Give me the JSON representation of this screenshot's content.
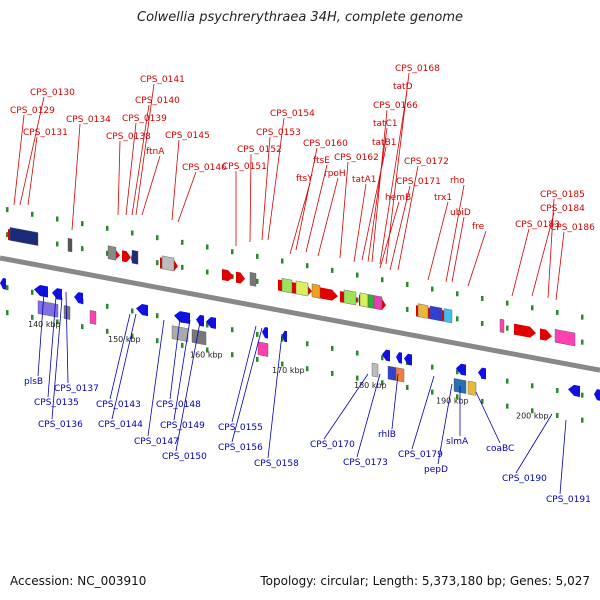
{
  "title": "Colwellia psychrerythraea 34H, complete genome",
  "footer": {
    "accession": "Accession: NC_003910",
    "summary": "Topology: circular; Length: 5,373,180 bp; Genes: 5,027"
  },
  "colors": {
    "forward": "#e00000",
    "reverse": "#1010e0",
    "label_forward": "#d40000",
    "label_reverse": "#0000b4",
    "backbone": "#888888",
    "tick": "#2a8a2a"
  },
  "scale_labels": [
    "140 kbp",
    "150 kbp",
    "160 kbp",
    "170 kbp",
    "180 kbp",
    "190 kbp",
    "200 kbp"
  ],
  "forward_labels": [
    "CPS_0130",
    "CPS_0129",
    "CPS_0131",
    "CPS_0134",
    "CPS_0141",
    "CPS_0140",
    "CPS_0139",
    "CPS_0138",
    "ftnA",
    "CPS_0145",
    "CPS_0146",
    "CPS_0154",
    "CPS_0153",
    "CPS_0152",
    "CPS_0151",
    "CPS_0160",
    "ftsE",
    "ftsY",
    "rpoH",
    "CPS_0162",
    "tatA1",
    "tatB1",
    "tatC1",
    "CPS_0166",
    "tatD",
    "CPS_0168",
    "hemB",
    "CPS_0172",
    "CPS_0171",
    "trx1",
    "rho",
    "ubiD",
    "fre",
    "CPS_0183",
    "CPS_0184",
    "CPS_0185",
    "CPS_0186"
  ],
  "reverse_labels": [
    "plsB",
    "CPS_0137",
    "CPS_0135",
    "CPS_0136",
    "CPS_0143",
    "CPS_0144",
    "CPS_0148",
    "CPS_0149",
    "CPS_0147",
    "CPS_0150",
    "CPS_0155",
    "CPS_0156",
    "CPS_0158",
    "CPS_0170",
    "rhlB",
    "CPS_0173",
    "CPS_0179",
    "pepD",
    "slmA",
    "coaBC",
    "CPS_0190",
    "CPS_0191"
  ]
}
